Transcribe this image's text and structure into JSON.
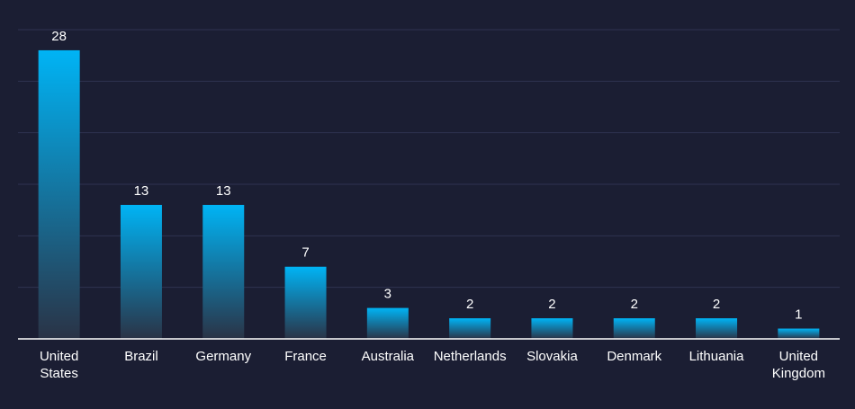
{
  "chart_data": {
    "type": "bar",
    "title": "",
    "xlabel": "",
    "ylabel": "",
    "categories": [
      [
        "United",
        "States"
      ],
      [
        "Brazil"
      ],
      [
        "Germany"
      ],
      [
        "France"
      ],
      [
        "Australia"
      ],
      [
        "Netherlands"
      ],
      [
        "Slovakia"
      ],
      [
        "Denmark"
      ],
      [
        "Lithuania"
      ],
      [
        "United",
        "Kingdom"
      ]
    ],
    "values": [
      28,
      13,
      13,
      7,
      3,
      2,
      2,
      2,
      2,
      1
    ],
    "value_labels": [
      "28",
      "13",
      "13",
      "7",
      "3",
      "2",
      "2",
      "2",
      "2",
      "1"
    ],
    "ylim": [
      0,
      30
    ],
    "y_gridlines": [
      5,
      10,
      15,
      20,
      25,
      30
    ],
    "grid": true,
    "legend": "none",
    "colors": {
      "background": "#1b1e33",
      "bar_top": "#00b4f5",
      "bar_bottom": "#2a3346",
      "gridline": "#2f3350",
      "axis": "#ffffff",
      "text": "#ffffff"
    }
  }
}
